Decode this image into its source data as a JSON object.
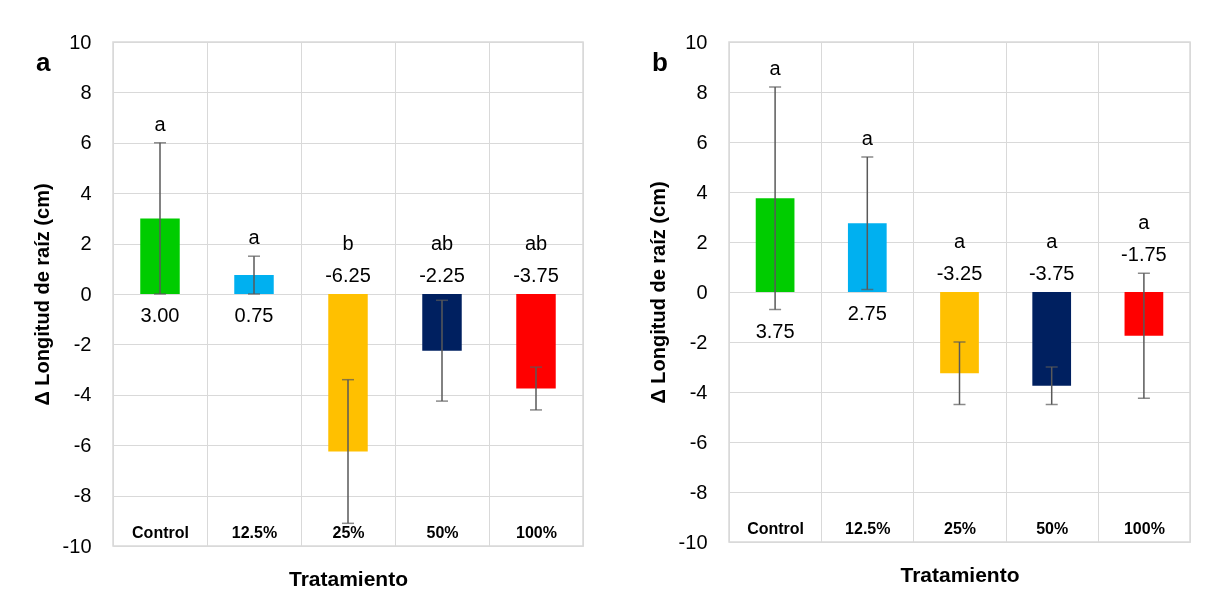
{
  "chart_data": [
    {
      "type": "bar",
      "title": "a",
      "xlabel": "Tratamiento",
      "ylabel": "Δ Longitud de raíz (cm)",
      "categories": [
        "Control",
        "12.5%",
        "25%",
        "50%",
        "100%"
      ],
      "values": [
        3.0,
        0.75,
        -6.25,
        -2.25,
        -3.75
      ],
      "colors": [
        "#00cc00",
        "#00b0f0",
        "#ffc000",
        "#002060",
        "#ff0000"
      ],
      "errors": [
        [
          0,
          6
        ],
        [
          0,
          1.5
        ],
        [
          -9.1,
          -3.4
        ],
        [
          -4.25,
          -0.25
        ],
        [
          -4.6,
          -2.9
        ]
      ],
      "value_labels": [
        "3.00",
        "0.75",
        "-6.25",
        "-2.25",
        "-3.75"
      ],
      "annotations": [
        "a",
        "a",
        "b",
        "ab",
        "ab"
      ],
      "ylim": [
        -10,
        10
      ],
      "yticks": [
        -10,
        -8,
        -6,
        -4,
        -2,
        0,
        2,
        4,
        6,
        8,
        10
      ],
      "grid": true
    },
    {
      "type": "bar",
      "title": "b",
      "xlabel": "Tratamiento",
      "ylabel": "Δ Longitud de raíz (cm)",
      "categories": [
        "Control",
        "12.5%",
        "25%",
        "50%",
        "100%"
      ],
      "values": [
        3.75,
        2.75,
        -3.25,
        -3.75,
        -1.75
      ],
      "colors": [
        "#00cc00",
        "#00b0f0",
        "#ffc000",
        "#002060",
        "#ff0000"
      ],
      "errors": [
        [
          -0.7,
          8.2
        ],
        [
          0.1,
          5.4
        ],
        [
          -4.5,
          -2.0
        ],
        [
          -4.5,
          -3.0
        ],
        [
          -4.25,
          0.75
        ]
      ],
      "value_labels": [
        "3.75",
        "2.75",
        "-3.25",
        "-3.75",
        "-1.75"
      ],
      "annotations": [
        "a",
        "a",
        "a",
        "a",
        "a"
      ],
      "ylim": [
        -10,
        10
      ],
      "yticks": [
        -10,
        -8,
        -6,
        -4,
        -2,
        0,
        2,
        4,
        6,
        8,
        10
      ],
      "grid": true
    }
  ]
}
